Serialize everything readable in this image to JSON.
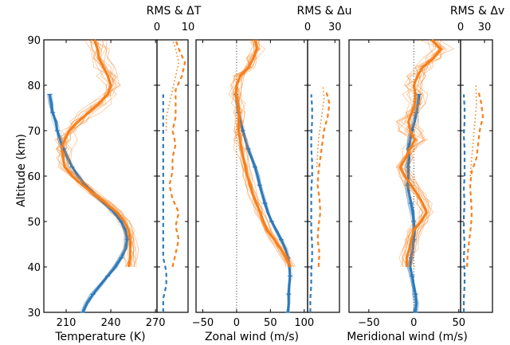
{
  "chart_data": [
    {
      "type": "line",
      "ylabel": "Altitude (km)",
      "ylim": [
        30,
        90
      ],
      "yticks": [
        "30",
        "40",
        "50",
        "60",
        "70",
        "80",
        "90"
      ],
      "panels": [
        {
          "id": "temperature",
          "xlabel": "Temperature (K)",
          "xlim": [
            195,
            271
          ],
          "xticks": [
            {
              "value": 210,
              "label": "210"
            },
            {
              "value": 240,
              "label": "240"
            },
            {
              "value": 270,
              "label": "270"
            }
          ],
          "zero_line": false,
          "series": [
            {
              "color": "#2e79b9",
              "alt": [
                30,
                32,
                34,
                36,
                38,
                40,
                42,
                44,
                46,
                48,
                50,
                52,
                54,
                56,
                58,
                60,
                62,
                64,
                66,
                68,
                70,
                72,
                74,
                76,
                78
              ],
              "x": [
                221,
                224,
                228,
                233,
                238,
                243,
                247,
                250,
                251,
                250,
                247,
                242,
                236,
                229,
                223,
                218,
                214,
                211,
                208,
                206,
                204,
                203,
                201,
                200,
                199
              ]
            },
            {
              "color": "#f77f1a",
              "alt": [
                40,
                42,
                44,
                46,
                48,
                50,
                52,
                54,
                56,
                58,
                60,
                62,
                64,
                66,
                68,
                70,
                72,
                74,
                76,
                78,
                80,
                82,
                84,
                86,
                88,
                90
              ],
              "x": [
                252,
                253,
                253,
                253,
                252,
                249,
                244,
                237,
                229,
                221,
                214,
                209,
                208,
                207,
                209,
                212,
                218,
                225,
                232,
                238,
                240,
                238,
                235,
                232,
                231,
                229
              ]
            }
          ]
        },
        {
          "id": "zonal",
          "xlabel": "Zonal wind (m/s)",
          "xlim": [
            -60,
            105
          ],
          "xticks": [
            {
              "value": -50,
              "label": "−50"
            },
            {
              "value": 0,
              "label": "0"
            },
            {
              "value": 50,
              "label": "50"
            },
            {
              "value": 100,
              "label": "100"
            }
          ],
          "zero_line": true,
          "series": [
            {
              "color": "#2e79b9",
              "alt": [
                30,
                32,
                34,
                36,
                38,
                40,
                42,
                44,
                46,
                48,
                50,
                52,
                54,
                56,
                58,
                60,
                62,
                64,
                66,
                68,
                70,
                72,
                74,
                76,
                78
              ],
              "x": [
                76,
                77,
                77,
                78,
                79,
                78,
                76,
                72,
                66,
                59,
                52,
                46,
                42,
                38,
                34,
                31,
                27,
                22,
                17,
                13,
                9,
                6,
                3,
                1,
                -1
              ]
            },
            {
              "color": "#f77f1a",
              "alt": [
                40,
                42,
                44,
                46,
                48,
                50,
                52,
                54,
                56,
                58,
                60,
                62,
                64,
                66,
                68,
                70,
                72,
                74,
                76,
                78,
                80,
                82,
                84,
                86,
                88,
                90
              ],
              "x": [
                80,
                73,
                65,
                56,
                46,
                40,
                35,
                29,
                24,
                20,
                16,
                13,
                10,
                7,
                5,
                3,
                3,
                4,
                2,
                -1,
                0,
                5,
                18,
                25,
                30,
                28
              ]
            }
          ]
        },
        {
          "id": "meridional",
          "xlabel": "Meridional wind (m/s)",
          "xlim": [
            -72,
            52
          ],
          "xticks": [
            {
              "value": -50,
              "label": "−50"
            },
            {
              "value": 0,
              "label": "0"
            },
            {
              "value": 50,
              "label": "50"
            }
          ],
          "zero_line": true,
          "series": [
            {
              "color": "#2e79b9",
              "alt": [
                30,
                32,
                34,
                36,
                38,
                40,
                42,
                44,
                46,
                48,
                50,
                52,
                54,
                56,
                58,
                60,
                62,
                64,
                66,
                68,
                70,
                72,
                74,
                76,
                78
              ],
              "x": [
                2,
                3,
                2,
                0,
                -2,
                -4,
                -3,
                -1,
                0,
                1,
                0,
                -1,
                -3,
                -5,
                -7,
                -6,
                -6,
                -5,
                -6,
                -4,
                -2,
                1,
                3,
                5,
                6
              ]
            },
            {
              "color": "#f77f1a",
              "alt": [
                40,
                42,
                44,
                46,
                48,
                50,
                52,
                54,
                56,
                58,
                60,
                62,
                64,
                66,
                68,
                70,
                72,
                74,
                76,
                78,
                80,
                82,
                84,
                86,
                88,
                90
              ],
              "x": [
                -8,
                -8,
                -5,
                -3,
                0,
                8,
                14,
                10,
                4,
                -3,
                -10,
                -15,
                -9,
                -4,
                1,
                -4,
                -6,
                -2,
                1,
                2,
                0,
                4,
                10,
                22,
                30,
                20
              ]
            }
          ]
        }
      ],
      "rms_panels": [
        {
          "title": "RMS & ΔT",
          "xlim": [
            0,
            10
          ],
          "xticks": [
            {
              "value": 0,
              "label": "0"
            },
            {
              "value": 10,
              "label": "10"
            }
          ],
          "blue_dashed": {
            "alt": [
              30,
              33,
              36,
              39,
              42,
              45,
              48,
              51,
              54,
              57,
              60,
              63,
              66,
              69,
              72,
              75,
              78
            ],
            "x": [
              2,
              2,
              3,
              3,
              2,
              2,
              2,
              2,
              2,
              2,
              2,
              2,
              2,
              2,
              2,
              2,
              2
            ]
          },
          "orange_dashed": {
            "alt": [
              40,
              43,
              46,
              49,
              52,
              55,
              58,
              61,
              64,
              67,
              70,
              73,
              76,
              79,
              82,
              85,
              88,
              90
            ],
            "x": [
              5,
              6,
              7,
              6,
              7,
              5,
              4,
              5,
              5,
              6,
              5,
              6,
              6,
              6,
              8,
              9,
              7,
              6
            ]
          },
          "orange_dotted": {
            "alt": [
              70,
              73,
              76,
              79,
              82,
              85,
              88,
              90
            ],
            "x": [
              3,
              3,
              4,
              5,
              6,
              7,
              6,
              5
            ]
          }
        },
        {
          "title": "RMS & Δu",
          "xlim": [
            0,
            35
          ],
          "xticks": [
            {
              "value": 0,
              "label": "0"
            },
            {
              "value": 30,
              "label": "30"
            }
          ],
          "blue_dashed": {
            "alt": [
              30,
              33,
              36,
              39,
              42,
              45,
              48,
              51,
              54,
              57,
              60,
              63,
              66,
              69,
              72,
              75,
              78
            ],
            "x": [
              3,
              3,
              4,
              4,
              5,
              5,
              4,
              4,
              4,
              4,
              5,
              5,
              4,
              4,
              5,
              5,
              4
            ]
          },
          "orange_dashed": {
            "alt": [
              40,
              43,
              46,
              49,
              52,
              55,
              58,
              61,
              64,
              67,
              70,
              73,
              76,
              79
            ],
            "x": [
              12,
              13,
              11,
              12,
              14,
              13,
              11,
              12,
              14,
              16,
              18,
              22,
              24,
              20
            ]
          },
          "orange_dotted": {
            "alt": [
              62,
              65,
              68,
              71,
              74,
              77,
              80
            ],
            "x": [
              10,
              11,
              12,
              14,
              16,
              18,
              17
            ]
          }
        },
        {
          "title": "RMS & Δv",
          "xlim": [
            0,
            40
          ],
          "xticks": [
            {
              "value": 0,
              "label": "0"
            },
            {
              "value": 30,
              "label": "30"
            }
          ],
          "blue_dashed": {
            "alt": [
              30,
              33,
              36,
              39,
              42,
              45,
              48,
              51,
              54,
              57,
              60,
              63,
              66,
              69,
              72,
              75,
              78
            ],
            "x": [
              4,
              4,
              5,
              5,
              4,
              5,
              4,
              4,
              5,
              4,
              5,
              5,
              5,
              4,
              5,
              5,
              4
            ]
          },
          "orange_dashed": {
            "alt": [
              40,
              43,
              46,
              49,
              52,
              55,
              58,
              61,
              64,
              67,
              70,
              73,
              76,
              79
            ],
            "x": [
              8,
              9,
              11,
              13,
              14,
              13,
              12,
              14,
              20,
              22,
              24,
              28,
              26,
              22
            ]
          },
          "orange_dotted": {
            "alt": [
              60,
              64,
              68,
              72,
              76,
              80
            ],
            "x": [
              12,
              14,
              16,
              18,
              20,
              19
            ]
          }
        }
      ]
    }
  ]
}
